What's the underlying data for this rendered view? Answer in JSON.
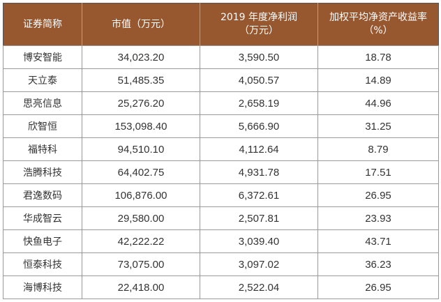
{
  "headers": [
    "证券简称",
    "市值（万元）",
    "2019 年度净利润（万元）",
    "加权平均净资产收益率（%）"
  ],
  "header_lines": [
    [
      "证券简称"
    ],
    [
      "市值（万元）"
    ],
    [
      "2019 年度净利润",
      "（万元）"
    ],
    [
      "加权平均净资产收益率",
      "（%）"
    ]
  ],
  "rows": [
    [
      "博安智能",
      "34,023.20",
      "3,590.50",
      "18.78"
    ],
    [
      "天立泰",
      "51,485.35",
      "4,050.57",
      "14.89"
    ],
    [
      "思亮信息",
      "25,276.20",
      "2,658.19",
      "44.96"
    ],
    [
      "欣智恒",
      "153,098.40",
      "5,666.90",
      "31.25"
    ],
    [
      "福特科",
      "94,510.10",
      "4,112.64",
      "8.79"
    ],
    [
      "浩腾科技",
      "64,402.75",
      "4,931.78",
      "17.51"
    ],
    [
      "君逸数码",
      "106,876.00",
      "6,372.61",
      "26.95"
    ],
    [
      "华成智云",
      "29,580.00",
      "2,507.81",
      "23.93"
    ],
    [
      "快鱼电子",
      "42,222.22",
      "3,039.40",
      "43.71"
    ],
    [
      "恒泰科技",
      "73,075.00",
      "3,097.02",
      "36.23"
    ],
    [
      "海博科技",
      "22,418.00",
      "2,522.04",
      "26.95"
    ]
  ],
  "colors": {
    "header_bg": "#97572f",
    "header_text": "#ffffff"
  }
}
